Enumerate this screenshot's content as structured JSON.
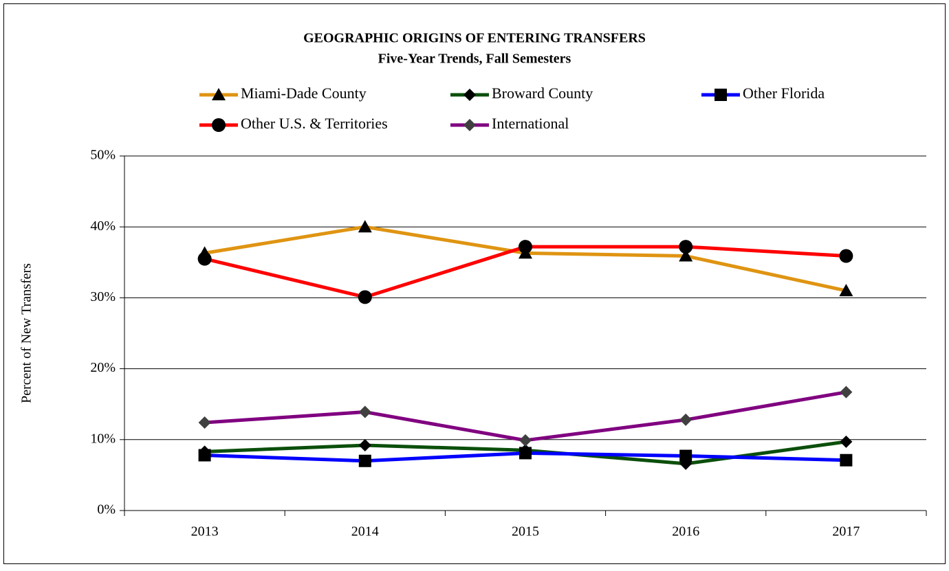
{
  "chart_data": {
    "type": "line",
    "title": "GEOGRAPHIC ORIGINS OF ENTERING TRANSFERS",
    "subtitle": "Five-Year Trends, Fall Semesters",
    "y_label": "Percent of New Transfers",
    "categories": [
      "2013",
      "2014",
      "2015",
      "2016",
      "2017"
    ],
    "ylim": [
      0,
      50
    ],
    "yticks": [
      {
        "value": 0,
        "label": "0%"
      },
      {
        "value": 10,
        "label": "10%"
      },
      {
        "value": 20,
        "label": "20%"
      },
      {
        "value": 30,
        "label": "30%"
      },
      {
        "value": 40,
        "label": "40%"
      },
      {
        "value": 50,
        "label": "50%"
      }
    ],
    "grid": true,
    "legend": "top",
    "series": [
      {
        "name": "Miami-Dade County",
        "color": "#DF9412",
        "marker": "triangle",
        "marker_color": "#000000",
        "values": [
          36.3,
          40.0,
          36.3,
          35.9,
          31.0
        ]
      },
      {
        "name": "Broward County",
        "color": "#0B4F0B",
        "marker": "diamond",
        "marker_color": "#000000",
        "values": [
          8.3,
          9.2,
          8.5,
          6.6,
          9.7
        ]
      },
      {
        "name": "Other Florida",
        "color": "#0000FF",
        "marker": "square",
        "marker_color": "#000000",
        "values": [
          7.8,
          7.0,
          8.1,
          7.7,
          7.1
        ]
      },
      {
        "name": "Other U.S. & Territories",
        "color": "#FF0000",
        "marker": "circle",
        "marker_color": "#000000",
        "values": [
          35.5,
          30.1,
          37.2,
          37.2,
          35.9
        ]
      },
      {
        "name": "International",
        "color": "#800080",
        "marker": "diamond",
        "marker_color": "#404040",
        "values": [
          12.4,
          13.9,
          9.9,
          12.8,
          16.7
        ]
      }
    ]
  }
}
